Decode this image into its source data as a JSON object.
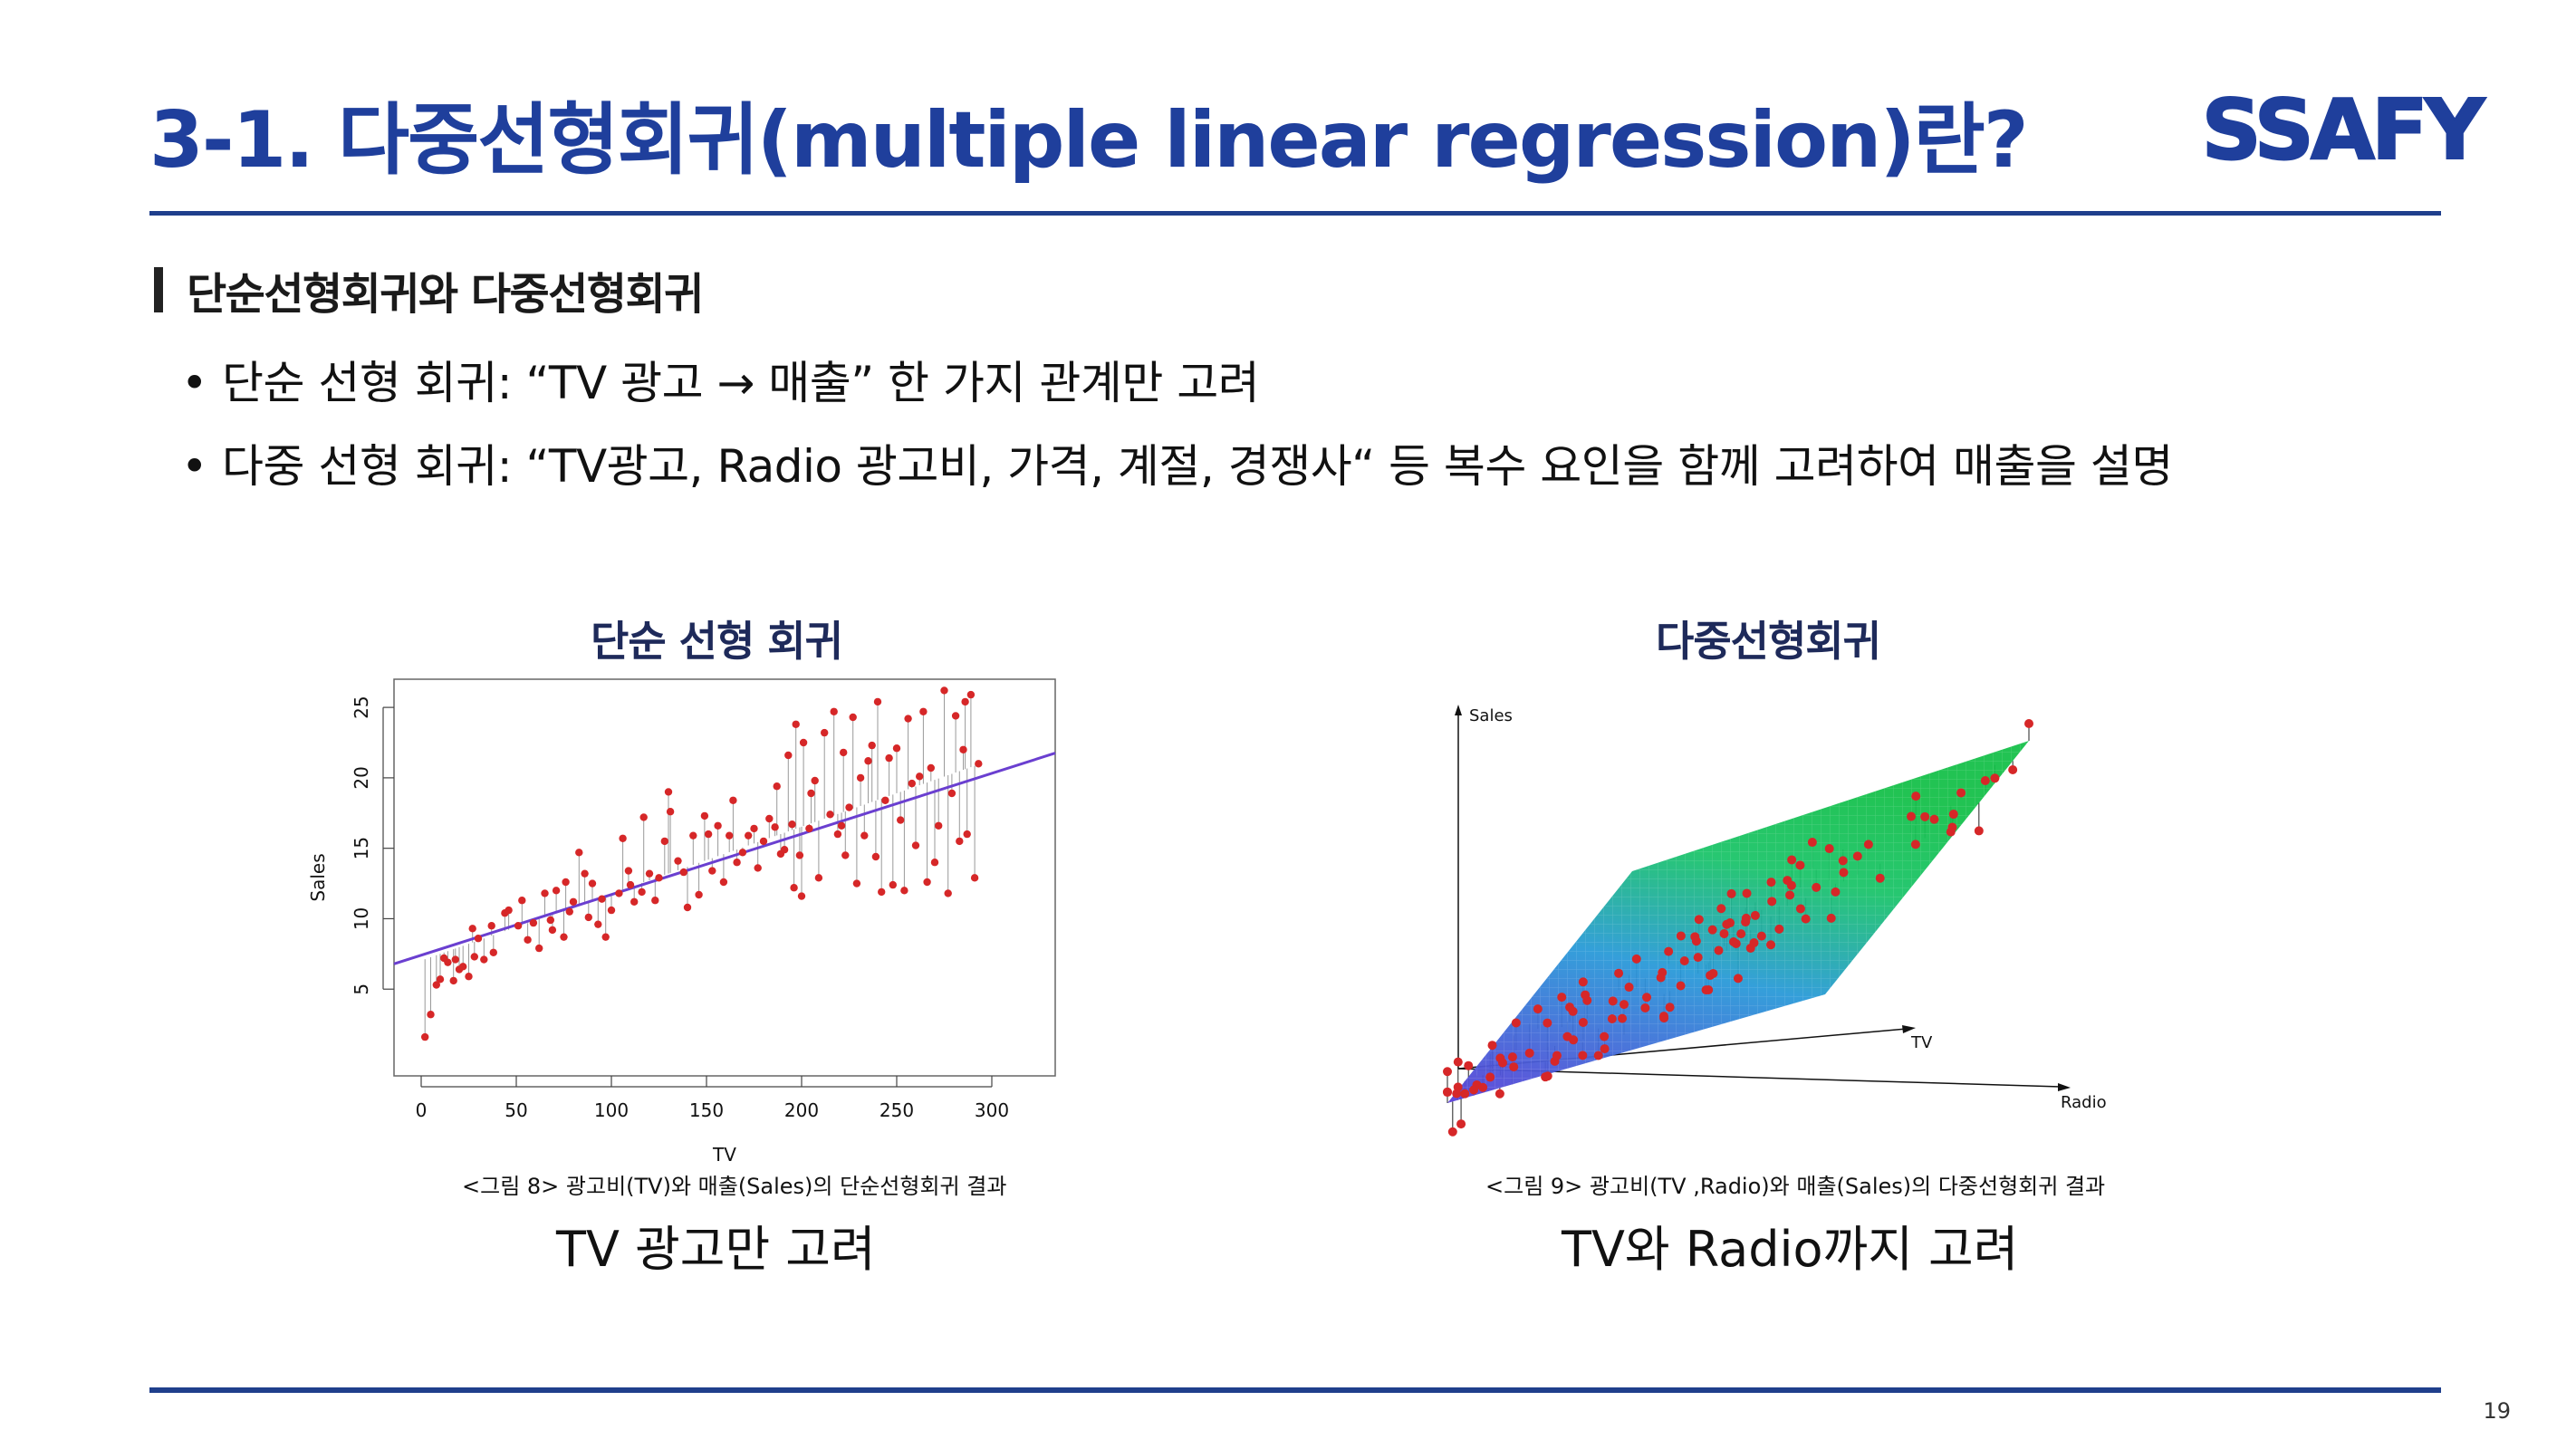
{
  "slide": {
    "title": "3-1. 다중선형회귀(multiple linear regression)란?",
    "logo_text": "SSAFY",
    "section_heading": "단순선형회귀와 다중선형회귀",
    "bullets": [
      "단순 선형 회귀: “TV 광고 → 매출” 한 가지 관계만 고려",
      "다중 선형 회귀: “TV광고, Radio 광고비, 가격, 계절, 경쟁사“ 등 복수 요인을 함께 고려하여 매출을 설명"
    ],
    "bullet_symbol": "•",
    "page_number": "19",
    "colors": {
      "title": "#1f3f9c",
      "rule": "#1f3f8c",
      "logo": "#1f3f9c",
      "point": "#d62728",
      "fit_line": "#6a3fd0"
    }
  },
  "left_panel": {
    "heading": "단순 선형 회귀",
    "caption": "<그림 8> 광고비(TV)와 매출(Sales)의 단순선형회귀 결과",
    "note": "TV 광고만 고려"
  },
  "right_panel": {
    "heading": "다중선형회귀",
    "caption": "<그림 9> 광고비(TV ,Radio)와 매출(Sales)의 다중선형회귀 결과",
    "note": "TV와 Radio까지 고려",
    "axis_labels": {
      "y": "Sales",
      "x": "TV",
      "z": "Radio"
    }
  },
  "chart_data": [
    {
      "type": "scatter",
      "xlabel": "TV",
      "ylabel": "Sales",
      "xlim": [
        0,
        300
      ],
      "ylim": [
        0,
        27
      ],
      "x_ticks": [
        0,
        50,
        100,
        150,
        200,
        250,
        300
      ],
      "y_ticks": [
        5,
        10,
        15,
        20,
        25
      ],
      "fit_line": {
        "intercept": 7.03,
        "slope": 0.0475
      },
      "points": [
        [
          2,
          1.6
        ],
        [
          5,
          3.2
        ],
        [
          8,
          5.3
        ],
        [
          10,
          5.7
        ],
        [
          12,
          7.2
        ],
        [
          14,
          6.9
        ],
        [
          17,
          5.6
        ],
        [
          18,
          7.1
        ],
        [
          20,
          6.4
        ],
        [
          22,
          6.6
        ],
        [
          25,
          5.9
        ],
        [
          27,
          9.3
        ],
        [
          28,
          7.3
        ],
        [
          30,
          8.6
        ],
        [
          33,
          7.1
        ],
        [
          37,
          9.5
        ],
        [
          38,
          7.6
        ],
        [
          44,
          10.4
        ],
        [
          46,
          10.6
        ],
        [
          51,
          9.5
        ],
        [
          53,
          11.3
        ],
        [
          56,
          8.5
        ],
        [
          59,
          9.7
        ],
        [
          62,
          7.9
        ],
        [
          65,
          11.8
        ],
        [
          68,
          9.9
        ],
        [
          69,
          9.2
        ],
        [
          71,
          12.0
        ],
        [
          75,
          8.7
        ],
        [
          76,
          12.6
        ],
        [
          78,
          10.5
        ],
        [
          80,
          11.2
        ],
        [
          83,
          14.7
        ],
        [
          86,
          13.2
        ],
        [
          88,
          10.1
        ],
        [
          90,
          12.5
        ],
        [
          93,
          9.6
        ],
        [
          95,
          11.4
        ],
        [
          97,
          8.7
        ],
        [
          100,
          10.6
        ],
        [
          104,
          11.8
        ],
        [
          106,
          15.7
        ],
        [
          109,
          13.4
        ],
        [
          110,
          12.4
        ],
        [
          112,
          11.2
        ],
        [
          116,
          11.9
        ],
        [
          117,
          17.2
        ],
        [
          120,
          13.2
        ],
        [
          123,
          11.3
        ],
        [
          125,
          12.9
        ],
        [
          128,
          15.5
        ],
        [
          130,
          19.0
        ],
        [
          131,
          17.6
        ],
        [
          135,
          14.1
        ],
        [
          138,
          13.3
        ],
        [
          140,
          10.8
        ],
        [
          143,
          15.9
        ],
        [
          146,
          11.7
        ],
        [
          149,
          17.3
        ],
        [
          151,
          16.0
        ],
        [
          153,
          13.4
        ],
        [
          156,
          16.6
        ],
        [
          159,
          12.6
        ],
        [
          162,
          15.9
        ],
        [
          164,
          18.4
        ],
        [
          166,
          14.0
        ],
        [
          169,
          14.7
        ],
        [
          172,
          15.9
        ],
        [
          175,
          16.4
        ],
        [
          177,
          13.6
        ],
        [
          180,
          15.5
        ],
        [
          183,
          17.1
        ],
        [
          186,
          16.5
        ],
        [
          187,
          19.4
        ],
        [
          189,
          14.6
        ],
        [
          191,
          14.9
        ],
        [
          193,
          21.6
        ],
        [
          195,
          16.7
        ],
        [
          196,
          12.2
        ],
        [
          197,
          23.8
        ],
        [
          199,
          14.5
        ],
        [
          200,
          11.6
        ],
        [
          201,
          22.5
        ],
        [
          204,
          16.4
        ],
        [
          205,
          18.9
        ],
        [
          207,
          19.8
        ],
        [
          209,
          12.9
        ],
        [
          212,
          23.2
        ],
        [
          215,
          17.4
        ],
        [
          217,
          24.7
        ],
        [
          219,
          16.0
        ],
        [
          221,
          16.6
        ],
        [
          222,
          21.8
        ],
        [
          223,
          14.5
        ],
        [
          225,
          17.9
        ],
        [
          227,
          24.3
        ],
        [
          229,
          12.5
        ],
        [
          231,
          20.0
        ],
        [
          233,
          15.9
        ],
        [
          235,
          21.2
        ],
        [
          237,
          22.3
        ],
        [
          239,
          14.4
        ],
        [
          240,
          25.4
        ],
        [
          242,
          11.9
        ],
        [
          244,
          18.4
        ],
        [
          246,
          21.4
        ],
        [
          248,
          12.4
        ],
        [
          250,
          22.1
        ],
        [
          252,
          17.0
        ],
        [
          254,
          12.0
        ],
        [
          256,
          24.2
        ],
        [
          258,
          19.6
        ],
        [
          260,
          15.2
        ],
        [
          262,
          20.1
        ],
        [
          264,
          24.7
        ],
        [
          266,
          12.6
        ],
        [
          268,
          20.7
        ],
        [
          270,
          14.0
        ],
        [
          272,
          16.6
        ],
        [
          275,
          26.2
        ],
        [
          277,
          11.8
        ],
        [
          279,
          18.9
        ],
        [
          281,
          24.4
        ],
        [
          283,
          15.5
        ],
        [
          285,
          22.0
        ],
        [
          286,
          25.4
        ],
        [
          287,
          16.0
        ],
        [
          289,
          25.9
        ],
        [
          291,
          12.9
        ],
        [
          293,
          21.0
        ]
      ]
    },
    {
      "type": "scatter",
      "ylabel": "Sales",
      "xlabel": "TV",
      "zlabel": "Radio",
      "plane": "fitted regression plane, color gradient blue → green"
    }
  ]
}
